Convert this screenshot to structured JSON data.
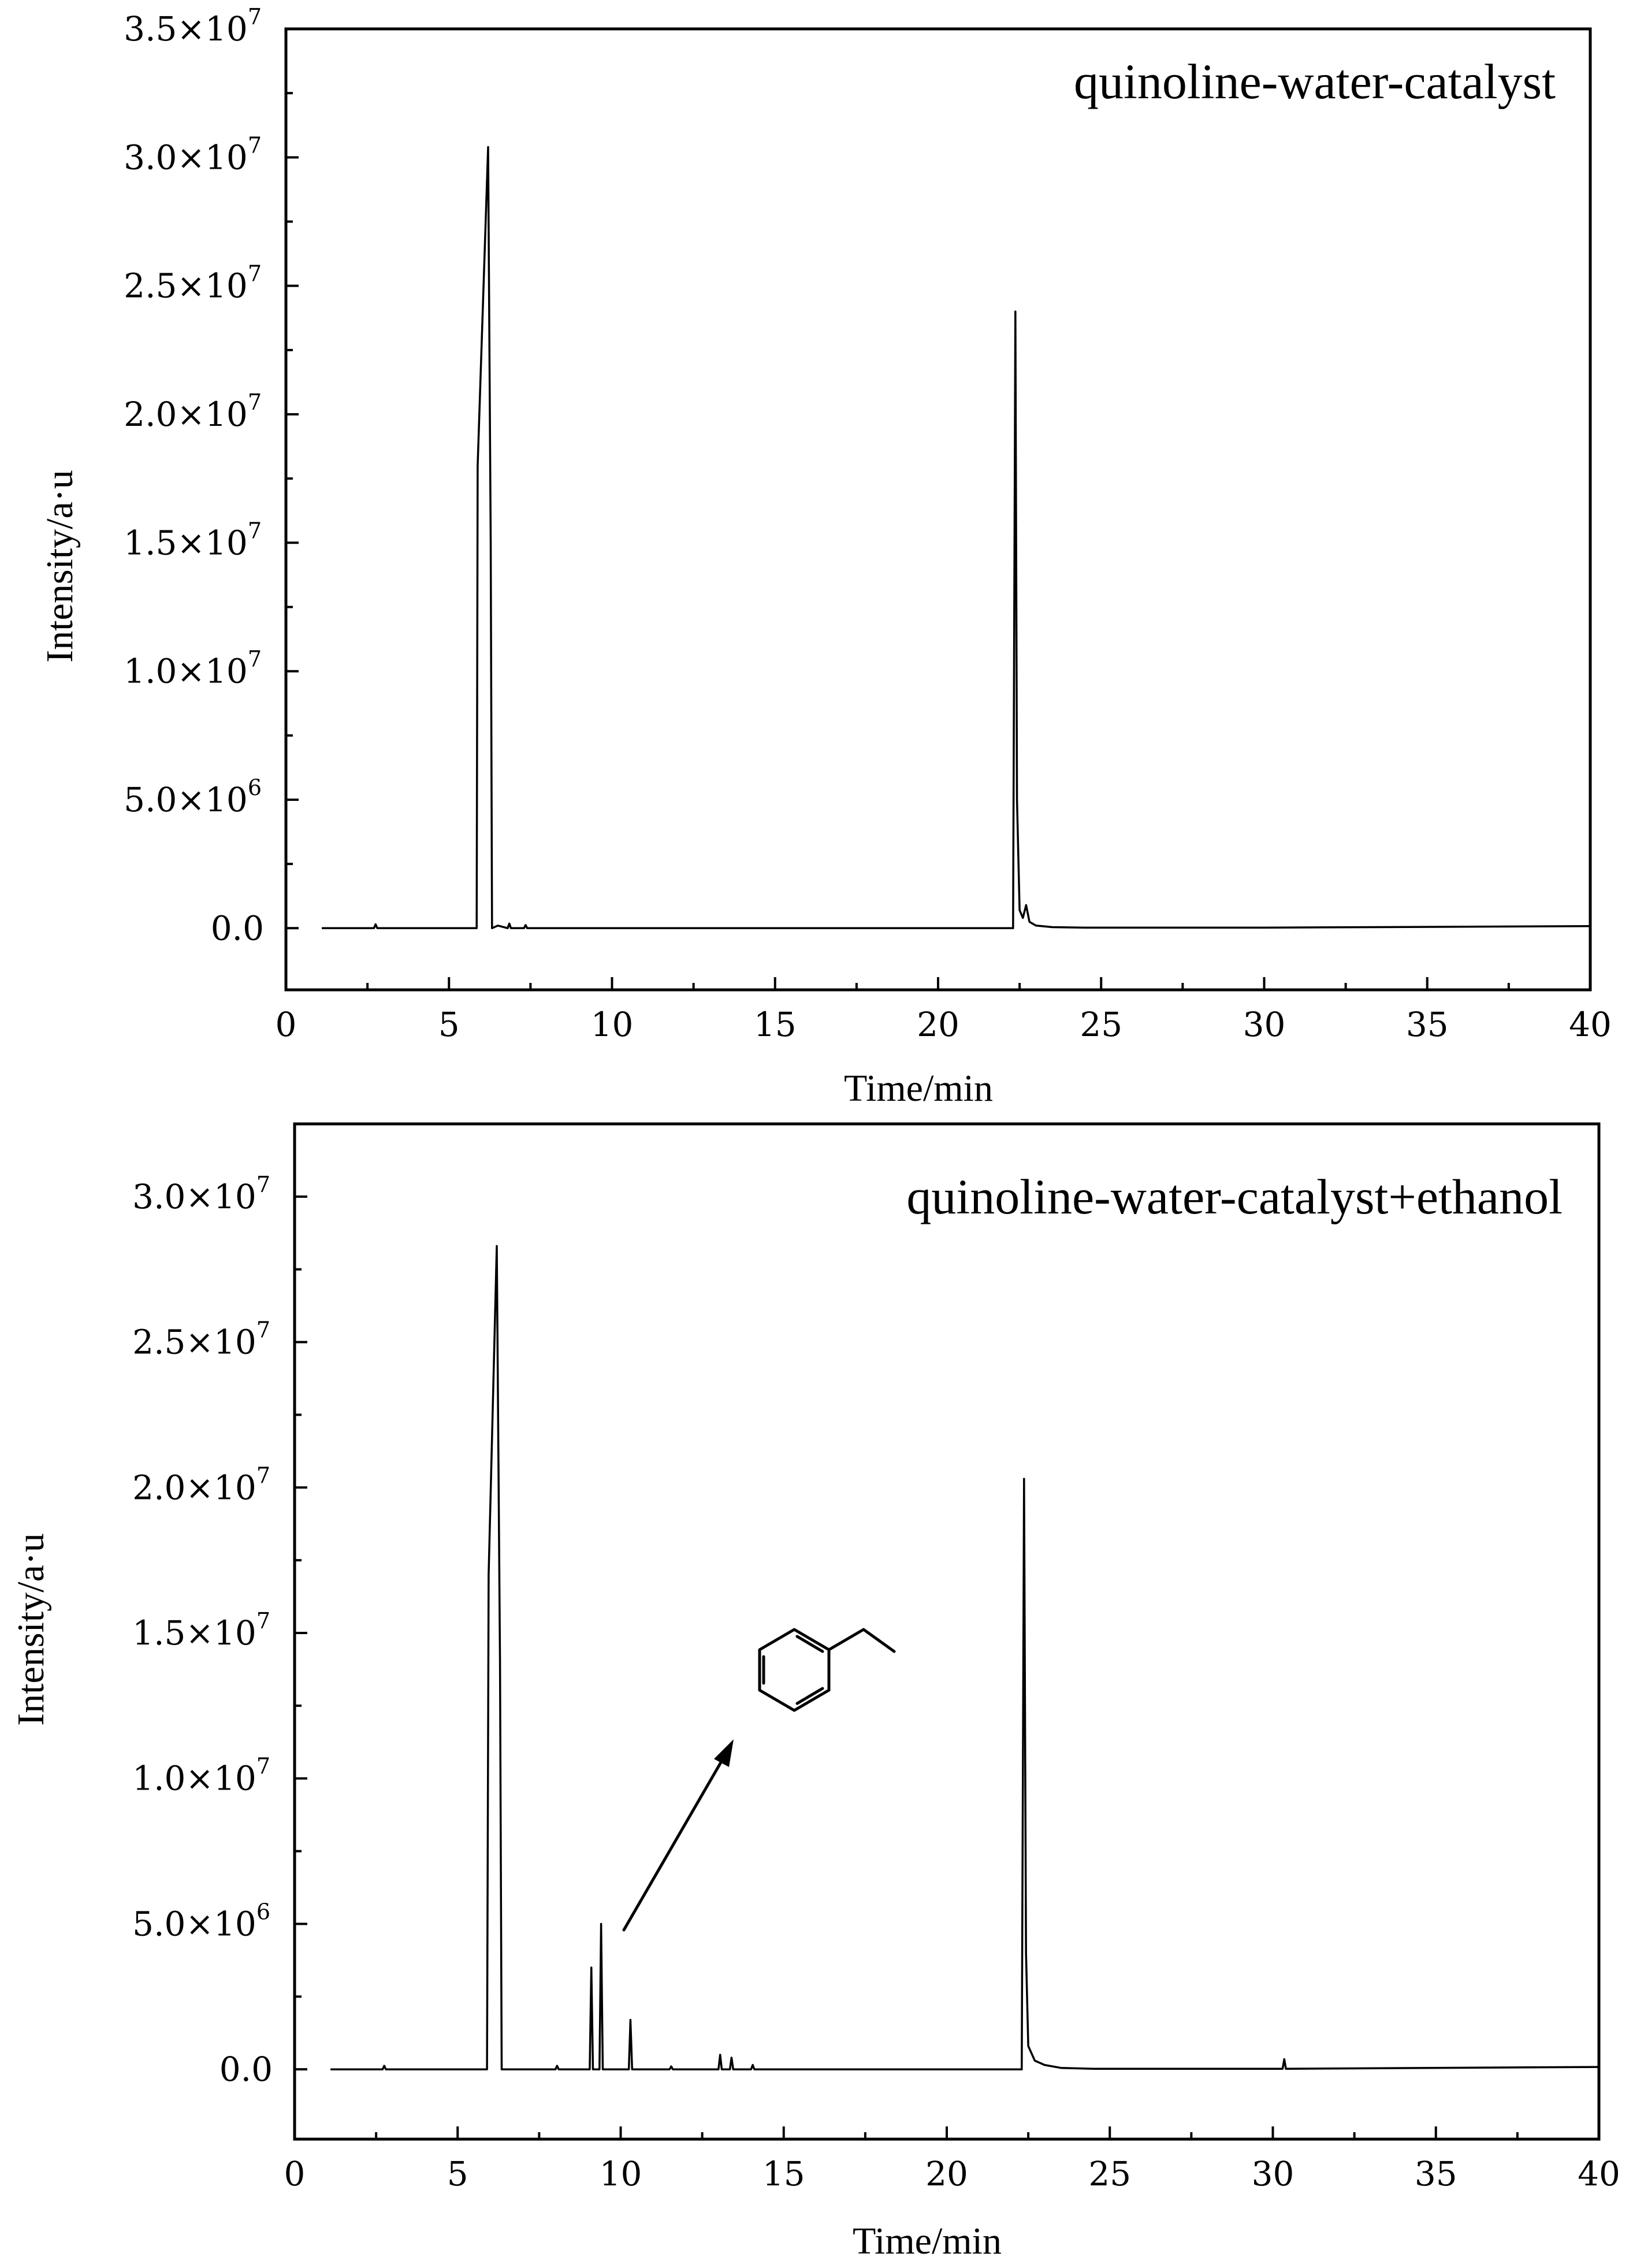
{
  "chart_data": [
    {
      "type": "line",
      "title": "quinoline-water-catalyst",
      "xlabel": "Time/min",
      "ylabel": "Intensity/a·u",
      "xlim": [
        0,
        40
      ],
      "ylim": [
        -2400000,
        35000000
      ],
      "x_ticks": [
        0,
        5,
        10,
        15,
        20,
        25,
        30,
        35,
        40
      ],
      "y_ticks": [
        {
          "value": 0,
          "mantissa": "0.0",
          "exp": ""
        },
        {
          "value": 5000000,
          "mantissa": "5.0",
          "exp": "6"
        },
        {
          "value": 10000000,
          "mantissa": "1.0",
          "exp": "7"
        },
        {
          "value": 15000000,
          "mantissa": "1.5",
          "exp": "7"
        },
        {
          "value": 20000000,
          "mantissa": "2.0",
          "exp": "7"
        },
        {
          "value": 25000000,
          "mantissa": "2.5",
          "exp": "7"
        },
        {
          "value": 30000000,
          "mantissa": "3.0",
          "exp": "7"
        },
        {
          "value": 35000000,
          "mantissa": "3.5",
          "exp": "7"
        }
      ],
      "tick_times": "×10",
      "series": [
        {
          "x": [
            1.1,
            2.7,
            2.75,
            2.8,
            5.85,
            5.88,
            6.2,
            6.28,
            6.32,
            6.5,
            6.8,
            6.85,
            6.9,
            7.3,
            7.35,
            7.4,
            22.3,
            22.37,
            22.42,
            22.5,
            22.6,
            22.7,
            22.8,
            23.0,
            23.5,
            24.5,
            30,
            40
          ],
          "y": [
            0,
            0,
            150000,
            0,
            0,
            18000000,
            30400000,
            15000000,
            0,
            100000,
            0,
            180000,
            0,
            0,
            120000,
            0,
            0,
            24000000,
            5000000,
            700000,
            400000,
            900000,
            250000,
            100000,
            40000,
            20000,
            20000,
            80000
          ]
        }
      ]
    },
    {
      "type": "line",
      "title": "quinoline-water-catalyst+ethanol",
      "xlabel": "Time/min",
      "ylabel": "Intensity/a·u",
      "xlim": [
        0,
        40
      ],
      "ylim": [
        -2400000,
        32500000
      ],
      "x_ticks": [
        0,
        5,
        10,
        15,
        20,
        25,
        30,
        35,
        40
      ],
      "y_ticks": [
        {
          "value": 0,
          "mantissa": "0.0",
          "exp": ""
        },
        {
          "value": 5000000,
          "mantissa": "5.0",
          "exp": "6"
        },
        {
          "value": 10000000,
          "mantissa": "1.0",
          "exp": "7"
        },
        {
          "value": 15000000,
          "mantissa": "1.5",
          "exp": "7"
        },
        {
          "value": 20000000,
          "mantissa": "2.0",
          "exp": "7"
        },
        {
          "value": 25000000,
          "mantissa": "2.5",
          "exp": "7"
        },
        {
          "value": 30000000,
          "mantissa": "3.0",
          "exp": "7"
        }
      ],
      "tick_times": "×10",
      "series": [
        {
          "x": [
            1.1,
            2.7,
            2.75,
            2.8,
            5.9,
            5.95,
            6.2,
            6.3,
            6.35,
            8.0,
            8.05,
            8.1,
            9.05,
            9.1,
            9.15,
            9.35,
            9.4,
            9.45,
            10.25,
            10.3,
            10.35,
            11.5,
            11.55,
            11.6,
            13.0,
            13.05,
            13.1,
            13.35,
            13.4,
            13.45,
            14.0,
            14.05,
            14.1,
            22.3,
            22.37,
            22.43,
            22.5,
            22.7,
            23.0,
            23.5,
            24.5,
            30.3,
            30.35,
            30.4,
            40
          ],
          "y": [
            0,
            0,
            120000,
            0,
            0,
            17000000,
            28300000,
            14000000,
            0,
            0,
            120000,
            0,
            0,
            3500000,
            0,
            0,
            5000000,
            0,
            0,
            1700000,
            0,
            0,
            100000,
            0,
            0,
            500000,
            0,
            0,
            400000,
            0,
            0,
            150000,
            0,
            0,
            20300000,
            4000000,
            800000,
            300000,
            150000,
            50000,
            20000,
            20000,
            350000,
            20000,
            80000
          ]
        }
      ],
      "annotation": {
        "type": "arrow",
        "from": {
          "x": 10.1,
          "y": 4400000
        },
        "to": {
          "x": 13.3,
          "y": 11400000
        },
        "label": "ethylbenzene (structure)"
      }
    }
  ]
}
